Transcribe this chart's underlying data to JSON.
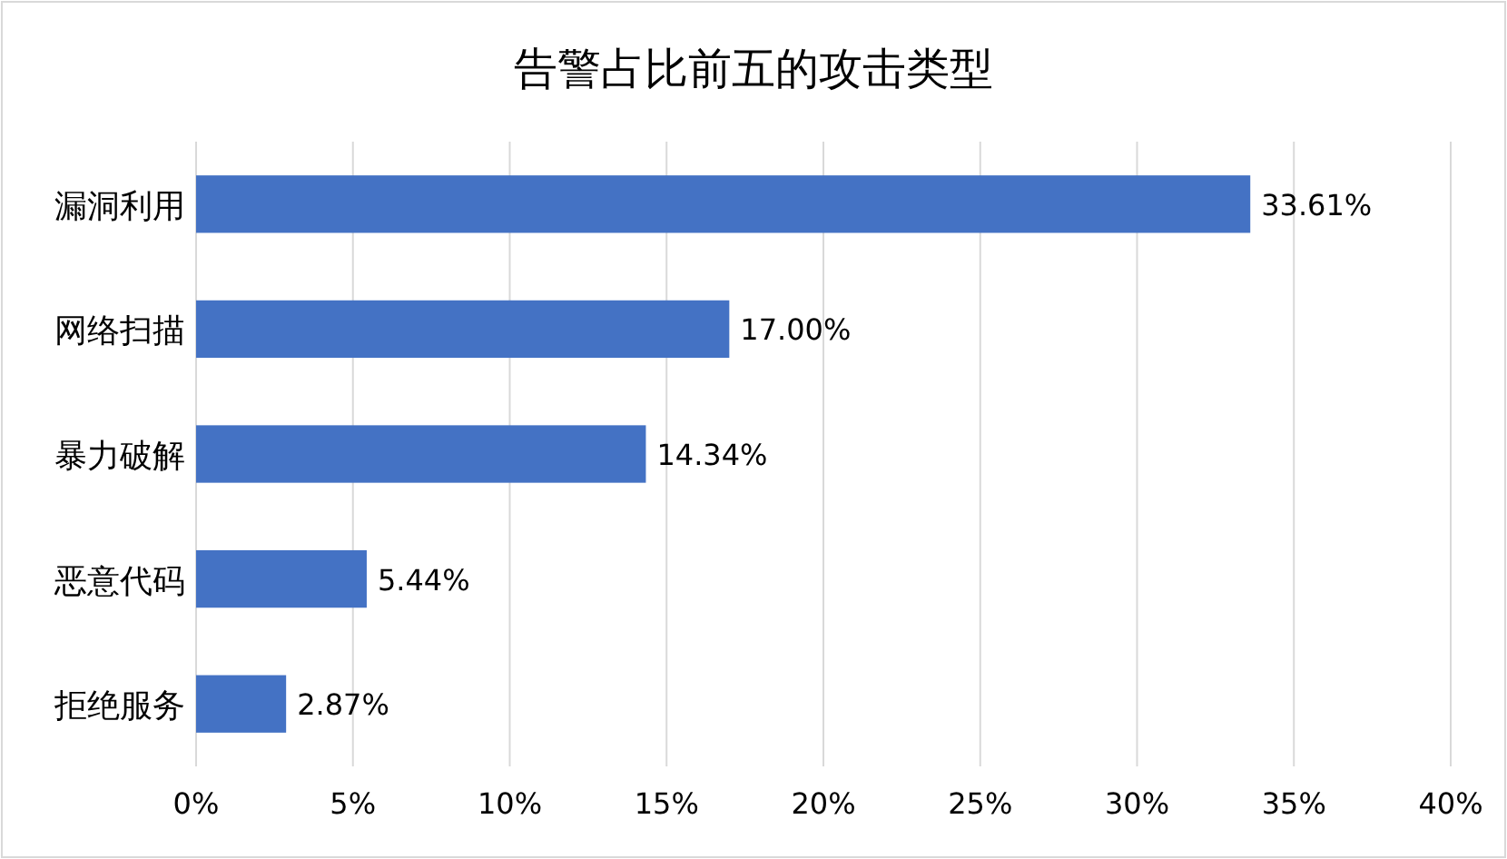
{
  "chart_data": {
    "type": "bar",
    "orientation": "horizontal",
    "title": "告警占比前五的攻击类型",
    "categories": [
      "漏洞利用",
      "网络扫描",
      "暴力破解",
      "恶意代码",
      "拒绝服务"
    ],
    "values": [
      33.61,
      17.0,
      14.34,
      5.44,
      2.87
    ],
    "value_labels": [
      "33.61%",
      "17.00%",
      "14.34%",
      "5.44%",
      "2.87%"
    ],
    "color": "#4472c4",
    "xlim": [
      0,
      40
    ],
    "xticks": [
      {
        "value": 0,
        "label": "0%"
      },
      {
        "value": 5,
        "label": "5%"
      },
      {
        "value": 10,
        "label": "10%"
      },
      {
        "value": 15,
        "label": "15%"
      },
      {
        "value": 20,
        "label": "20%"
      },
      {
        "value": 25,
        "label": "25%"
      },
      {
        "value": 30,
        "label": "30%"
      },
      {
        "value": 35,
        "label": "35%"
      },
      {
        "value": 40,
        "label": "40%"
      }
    ],
    "grid": "x"
  }
}
